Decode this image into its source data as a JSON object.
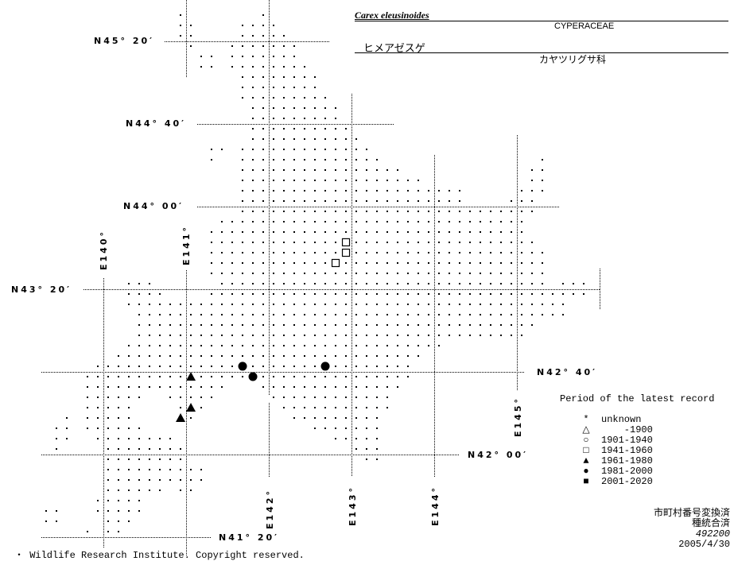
{
  "header": {
    "scientific_name": "Carex eleusinoides",
    "family": "CYPERACEAE",
    "japanese_name": "ヒメアゼスゲ",
    "japanese_family": "カヤツリグサ科"
  },
  "map": {
    "lat_labels": [
      "N45° 20′",
      "N44° 40′",
      "N44° 00′",
      "N43° 20′",
      "N42° 40′",
      "N42° 00′",
      "N41° 20′"
    ],
    "lon_labels": [
      "E140°",
      "E141°",
      "E142°",
      "E143°",
      "E144°",
      "E145°"
    ],
    "records": [
      {
        "period": "1941-1960",
        "symbol": "open-square",
        "lon": 142.933,
        "lat": 43.712
      },
      {
        "period": "1941-1960",
        "symbol": "open-square",
        "lon": 142.933,
        "lat": 43.628
      },
      {
        "period": "1941-1960",
        "symbol": "open-square",
        "lon": 142.808,
        "lat": 43.545
      },
      {
        "period": "1961-1980",
        "symbol": "filled-triangle",
        "lon": 141.058,
        "lat": 42.628
      },
      {
        "period": "1961-1980",
        "symbol": "filled-triangle",
        "lon": 141.058,
        "lat": 42.378
      },
      {
        "period": "1961-1980",
        "symbol": "filled-triangle",
        "lon": 140.933,
        "lat": 42.295
      },
      {
        "period": "1981-2000",
        "symbol": "filled-circle",
        "lon": 141.683,
        "lat": 42.712
      },
      {
        "period": "1981-2000",
        "symbol": "filled-circle",
        "lon": 141.808,
        "lat": 42.628
      },
      {
        "period": "1981-2000",
        "symbol": "filled-circle",
        "lon": 142.683,
        "lat": 42.712
      }
    ]
  },
  "legend": {
    "title": "Period of the latest record",
    "items": [
      {
        "symbol": "*",
        "icon": "asterisk-icon",
        "label": "unknown"
      },
      {
        "symbol": "△",
        "icon": "open-triangle-icon",
        "label": "    -1900"
      },
      {
        "symbol": "○",
        "icon": "open-circle-icon",
        "label": "1901-1940"
      },
      {
        "symbol": "□",
        "icon": "open-square-icon",
        "label": "1941-1960"
      },
      {
        "symbol": "▲",
        "icon": "filled-triangle-icon",
        "label": "1961-1980"
      },
      {
        "symbol": "●",
        "icon": "filled-circle-icon",
        "label": "1981-2000"
      },
      {
        "symbol": "■",
        "icon": "filled-square-icon",
        "label": "2001-2020"
      }
    ]
  },
  "notes": {
    "line1": "市町村番号変換済",
    "line2": "種統合済",
    "code": "492200",
    "date": "2005/4/30"
  },
  "footer": {
    "copyright": "・ Wildlife Research Institute. Copyright reserved."
  }
}
